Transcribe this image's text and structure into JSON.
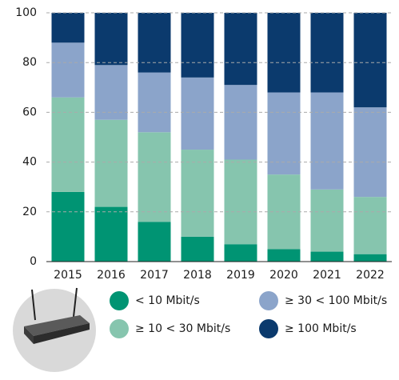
{
  "chart_data": {
    "type": "stacked_bar",
    "categories": [
      "2015",
      "2016",
      "2017",
      "2018",
      "2019",
      "2020",
      "2021",
      "2022"
    ],
    "series": [
      {
        "name": "< 10 Mbit/s",
        "color": "#009473",
        "values": [
          28,
          22,
          16,
          10,
          7,
          5,
          4,
          3
        ]
      },
      {
        "name": "≥ 10 < 30 Mbit/s",
        "color": "#86c5ae",
        "values": [
          38,
          35,
          36,
          35,
          34,
          30,
          25,
          23
        ]
      },
      {
        "name": "≥ 30 < 100 Mbit/s",
        "color": "#8ba4ca",
        "values": [
          22,
          22,
          24,
          29,
          30,
          33,
          39,
          36
        ]
      },
      {
        "name": "≥ 100 Mbit/s",
        "color": "#0b3a6d",
        "values": [
          12,
          21,
          24,
          26,
          29,
          32,
          32,
          38
        ]
      }
    ],
    "ylim": [
      0,
      100
    ],
    "yticks": [
      0,
      20,
      40,
      60,
      80,
      100
    ],
    "grid": true
  }
}
